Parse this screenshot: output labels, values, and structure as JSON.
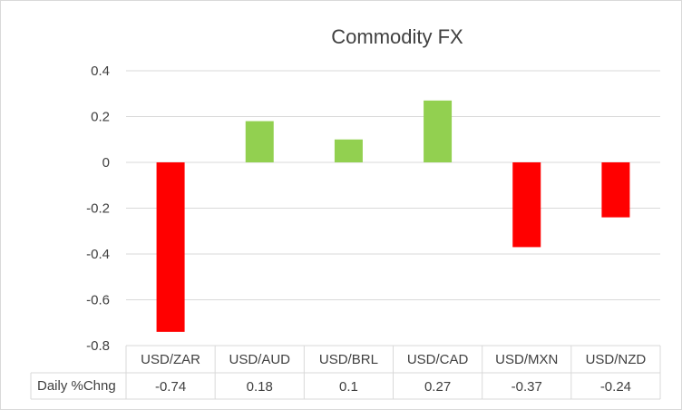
{
  "chart_data": {
    "type": "bar",
    "title": "Commodity FX",
    "categories": [
      "USD/ZAR",
      "USD/AUD",
      "USD/BRL",
      "USD/CAD",
      "USD/MXN",
      "USD/NZD"
    ],
    "series": [
      {
        "name": "Daily %Chng",
        "values": [
          -0.74,
          0.18,
          0.1,
          0.27,
          -0.37,
          -0.24
        ]
      }
    ],
    "table_values": [
      "-0.74",
      "0.18",
      "0.1",
      "0.27",
      "-0.37",
      "-0.24"
    ],
    "ylim": [
      -0.8,
      0.4
    ],
    "yticks": [
      "0.4",
      "0.2",
      "0",
      "-0.2",
      "-0.4",
      "-0.6",
      "-0.8"
    ],
    "grid": true,
    "data_table": true,
    "colors": {
      "positive": "#92d050",
      "negative": "#ff0000",
      "grid": "#d9d9d9",
      "text": "#404040"
    }
  }
}
